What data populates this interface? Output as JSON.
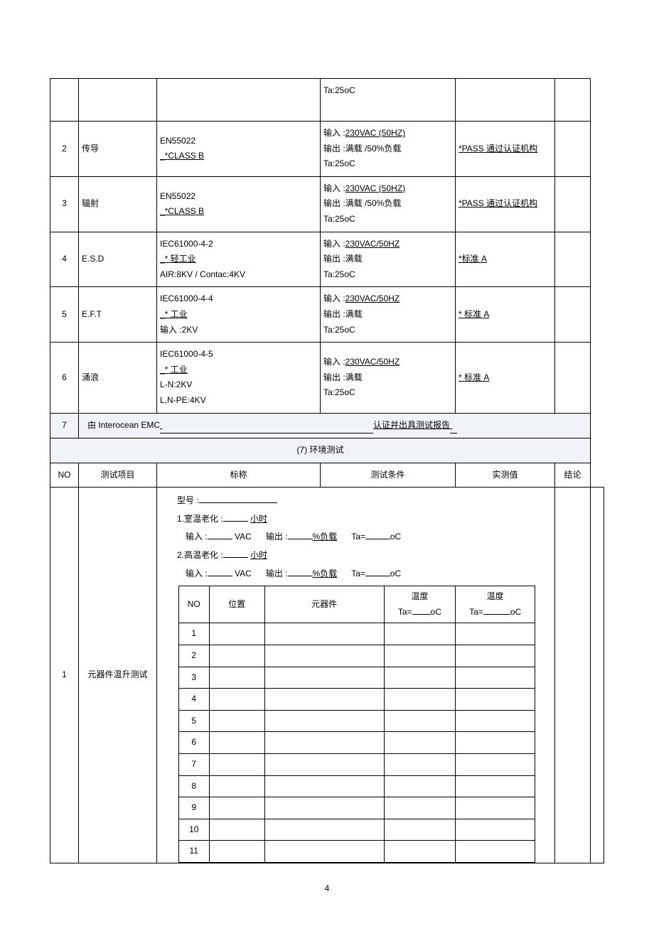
{
  "emc_rows": [
    {
      "no": "",
      "item": "",
      "std": "",
      "cond_lines": [
        "Ta:25oC"
      ],
      "meas": "",
      "res": ""
    },
    {
      "no": "2",
      "item": "传导",
      "std_lines": [
        "EN55022",
        "_*CLASS B"
      ],
      "cond_input": "230VAC (50HZ)",
      "cond_output": "满载 /50%负载",
      "cond_ta": "Ta:25oC",
      "meas_ul": "*PASS 通过认证机构",
      "res": ""
    },
    {
      "no": "3",
      "item": "辐射",
      "std_lines": [
        "EN55022",
        "_*CLASS B"
      ],
      "cond_input": "230VAC (50HZ)",
      "cond_output": "满载 /50%负载",
      "cond_ta": "Ta:25oC",
      "meas_ul": "*PASS 通过认证机构",
      "res": ""
    },
    {
      "no": "4",
      "item": "E.S.D",
      "std_lines": [
        "IEC61000-4-2",
        "_* 轻工业",
        "AIR:8KV / Contac:4KV"
      ],
      "std_ul_idx": 1,
      "cond_input": "230VAC/50HZ",
      "cond_output": "满载",
      "cond_ta": "Ta:25oC",
      "meas_ul": "*标准 A",
      "res": ""
    },
    {
      "no": "5",
      "item": "E.F.T",
      "std_lines": [
        "IEC61000-4-4",
        "_* 工业",
        "  输入 :2KV"
      ],
      "std_ul_idx": 1,
      "cond_input": "230VAC/50HZ",
      "cond_output": "满载",
      "cond_ta": "Ta:25oC",
      "meas_ul": "* 标准  A",
      "res": ""
    },
    {
      "no": "6",
      "item": "涌浪",
      "std_lines": [
        "IEC61000-4-5",
        "_* 工业",
        "  L-N:2KV",
        "  L,N-PE:4KV"
      ],
      "std_ul_idx": 1,
      "cond_input": "230VAC/50HZ",
      "cond_output": "满载",
      "cond_ta": "Ta:25oC",
      "meas_ul": "* 标准  A",
      "res": ""
    }
  ],
  "emc_row7_prefix": "由 Interocean EMC",
  "emc_row7_suffix": "认证并出具测试报告",
  "emc_row7_no": "7",
  "section7_title": "(7) 环境测试",
  "env_headers": {
    "no": "NO",
    "item": "测试项目",
    "std": "标称",
    "cond": "测试条件",
    "meas": "实测值",
    "res": "结论"
  },
  "env_row1": {
    "no": "1",
    "item": "元器件温升测试",
    "model_label": "型号 :",
    "line1_label": "1.室温老化 :",
    "line1_unit": "小时",
    "line2_label": "2.高温老化 :",
    "line2_unit": "小时",
    "input_label": "输入 :",
    "input_unit": "VAC",
    "output_label": "输出 :",
    "output_unit": "%负载",
    "ta_label": "Ta=",
    "ta_unit": "oC",
    "inner_headers": {
      "no": "NO",
      "pos": "位置",
      "comp": "元器件",
      "t1_a": "温度",
      "t1_b_pre": "Ta=",
      "t1_b_suf": "oC",
      "t2_a": "温度",
      "t2_b_pre": "Ta=",
      "t2_b_suf": "oC"
    },
    "inner_rows": [
      "1",
      "2",
      "3",
      "4",
      "5",
      "6",
      "7",
      "8",
      "9",
      "10",
      "11"
    ]
  },
  "page_number": "4"
}
